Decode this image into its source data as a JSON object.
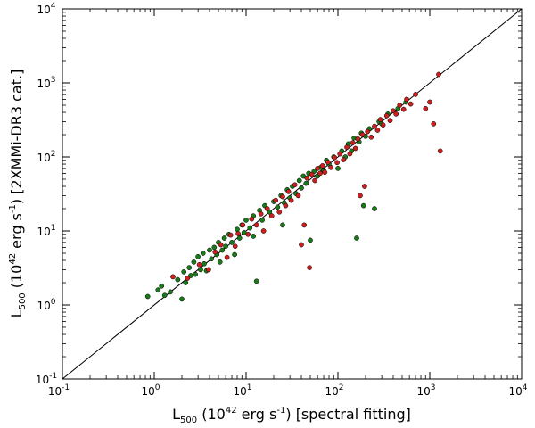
{
  "chart_data": {
    "type": "scatter",
    "title": "",
    "x_scale": "log",
    "y_scale": "log",
    "xlim": [
      0.1,
      10000
    ],
    "ylim": [
      0.1,
      10000
    ],
    "grid": false,
    "legend": "none",
    "xlabel": {
      "prefix": "L",
      "sub": "500",
      "rest": " (10",
      "sup": "42",
      "units": " erg s",
      "units_sup": "-1",
      "suffix": ") [spectral fitting]"
    },
    "ylabel": {
      "prefix": "L",
      "sub": "500",
      "rest": " (10",
      "sup": "42",
      "units": " erg s",
      "units_sup": "-1",
      "suffix": ") [2XMMi-DR3 cat.]"
    },
    "ticks": [
      {
        "value": 0.1,
        "base": "10",
        "exp": "-1"
      },
      {
        "value": 1,
        "base": "10",
        "exp": "0"
      },
      {
        "value": 10,
        "base": "10",
        "exp": "1"
      },
      {
        "value": 100,
        "base": "10",
        "exp": "2"
      },
      {
        "value": 1000,
        "base": "10",
        "exp": "3"
      },
      {
        "value": 10000,
        "base": "10",
        "exp": "4"
      }
    ],
    "reference_line": {
      "name": "one-to-one",
      "x": [
        0.1,
        10000
      ],
      "y": [
        0.1,
        10000
      ]
    },
    "series": [
      {
        "name": "green",
        "color": "#1a7a1a",
        "points": [
          [
            0.85,
            1.3
          ],
          [
            1.1,
            1.6
          ],
          [
            1.2,
            1.8
          ],
          [
            1.3,
            1.35
          ],
          [
            1.5,
            1.5
          ],
          [
            1.8,
            2.2
          ],
          [
            2.0,
            1.2
          ],
          [
            2.1,
            2.8
          ],
          [
            2.2,
            2.0
          ],
          [
            2.4,
            3.2
          ],
          [
            2.5,
            2.5
          ],
          [
            2.7,
            3.8
          ],
          [
            2.8,
            2.6
          ],
          [
            3.0,
            4.5
          ],
          [
            3.2,
            3.0
          ],
          [
            3.4,
            5.0
          ],
          [
            3.5,
            3.6
          ],
          [
            3.7,
            2.9
          ],
          [
            4.0,
            5.5
          ],
          [
            4.2,
            4.2
          ],
          [
            4.5,
            6.0
          ],
          [
            4.8,
            4.8
          ],
          [
            5.0,
            7.0
          ],
          [
            5.2,
            3.8
          ],
          [
            5.5,
            5.5
          ],
          [
            5.8,
            8.0
          ],
          [
            6.0,
            6.2
          ],
          [
            6.5,
            9.0
          ],
          [
            7.0,
            7.0
          ],
          [
            7.5,
            4.8
          ],
          [
            8.0,
            10.5
          ],
          [
            8.5,
            8.0
          ],
          [
            9.0,
            12.0
          ],
          [
            9.5,
            9.5
          ],
          [
            10,
            14
          ],
          [
            11,
            11
          ],
          [
            12,
            16
          ],
          [
            12,
            8.5
          ],
          [
            13,
            2.1
          ],
          [
            14,
            19
          ],
          [
            15,
            14
          ],
          [
            16,
            22
          ],
          [
            18,
            18
          ],
          [
            20,
            25
          ],
          [
            22,
            21
          ],
          [
            24,
            30
          ],
          [
            25,
            12
          ],
          [
            26,
            24
          ],
          [
            28,
            36
          ],
          [
            30,
            28
          ],
          [
            32,
            40
          ],
          [
            35,
            32
          ],
          [
            38,
            48
          ],
          [
            40,
            38
          ],
          [
            42,
            55
          ],
          [
            45,
            44
          ],
          [
            48,
            60
          ],
          [
            50,
            7.5
          ],
          [
            55,
            64
          ],
          [
            60,
            55
          ],
          [
            65,
            72
          ],
          [
            70,
            66
          ],
          [
            75,
            90
          ],
          [
            80,
            80
          ],
          [
            90,
            100
          ],
          [
            100,
            70
          ],
          [
            110,
            120
          ],
          [
            120,
            100
          ],
          [
            130,
            150
          ],
          [
            140,
            120
          ],
          [
            150,
            180
          ],
          [
            160,
            8.0
          ],
          [
            170,
            160
          ],
          [
            180,
            210
          ],
          [
            190,
            22
          ],
          [
            200,
            190
          ],
          [
            220,
            240
          ],
          [
            250,
            20
          ],
          [
            280,
            300
          ],
          [
            300,
            280
          ],
          [
            350,
            380
          ],
          [
            450,
            450
          ],
          [
            550,
            550
          ]
        ]
      },
      {
        "name": "red",
        "color": "#cc1f1f",
        "points": [
          [
            1.6,
            2.4
          ],
          [
            2.3,
            2.3
          ],
          [
            3.1,
            3.5
          ],
          [
            3.9,
            3.0
          ],
          [
            4.6,
            5.2
          ],
          [
            5.3,
            6.5
          ],
          [
            6.2,
            4.4
          ],
          [
            6.8,
            8.8
          ],
          [
            7.6,
            6.2
          ],
          [
            8.2,
            9.2
          ],
          [
            9.2,
            12
          ],
          [
            10.5,
            9.0
          ],
          [
            11.5,
            14.5
          ],
          [
            13,
            12
          ],
          [
            14.5,
            17
          ],
          [
            15.5,
            10
          ],
          [
            17,
            20
          ],
          [
            19,
            16
          ],
          [
            21,
            26
          ],
          [
            23,
            18
          ],
          [
            25,
            29
          ],
          [
            27,
            22
          ],
          [
            29,
            34
          ],
          [
            31,
            26
          ],
          [
            34,
            42
          ],
          [
            37,
            30
          ],
          [
            40,
            6.5
          ],
          [
            43,
            12
          ],
          [
            46,
            52
          ],
          [
            49,
            3.2
          ],
          [
            52,
            58
          ],
          [
            56,
            48
          ],
          [
            60,
            70
          ],
          [
            64,
            60
          ],
          [
            68,
            76
          ],
          [
            72,
            62
          ],
          [
            78,
            85
          ],
          [
            84,
            72
          ],
          [
            92,
            98
          ],
          [
            98,
            84
          ],
          [
            105,
            110
          ],
          [
            115,
            92
          ],
          [
            125,
            135
          ],
          [
            135,
            110
          ],
          [
            145,
            155
          ],
          [
            155,
            130
          ],
          [
            165,
            175
          ],
          [
            175,
            30
          ],
          [
            185,
            200
          ],
          [
            195,
            40
          ],
          [
            210,
            220
          ],
          [
            230,
            185
          ],
          [
            250,
            260
          ],
          [
            270,
            230
          ],
          [
            290,
            320
          ],
          [
            310,
            270
          ],
          [
            340,
            360
          ],
          [
            370,
            310
          ],
          [
            400,
            420
          ],
          [
            430,
            380
          ],
          [
            470,
            500
          ],
          [
            520,
            440
          ],
          [
            560,
            600
          ],
          [
            620,
            520
          ],
          [
            700,
            700
          ],
          [
            900,
            450
          ],
          [
            1000,
            550
          ],
          [
            1100,
            280
          ],
          [
            1250,
            1300
          ],
          [
            1300,
            120
          ]
        ]
      }
    ]
  }
}
